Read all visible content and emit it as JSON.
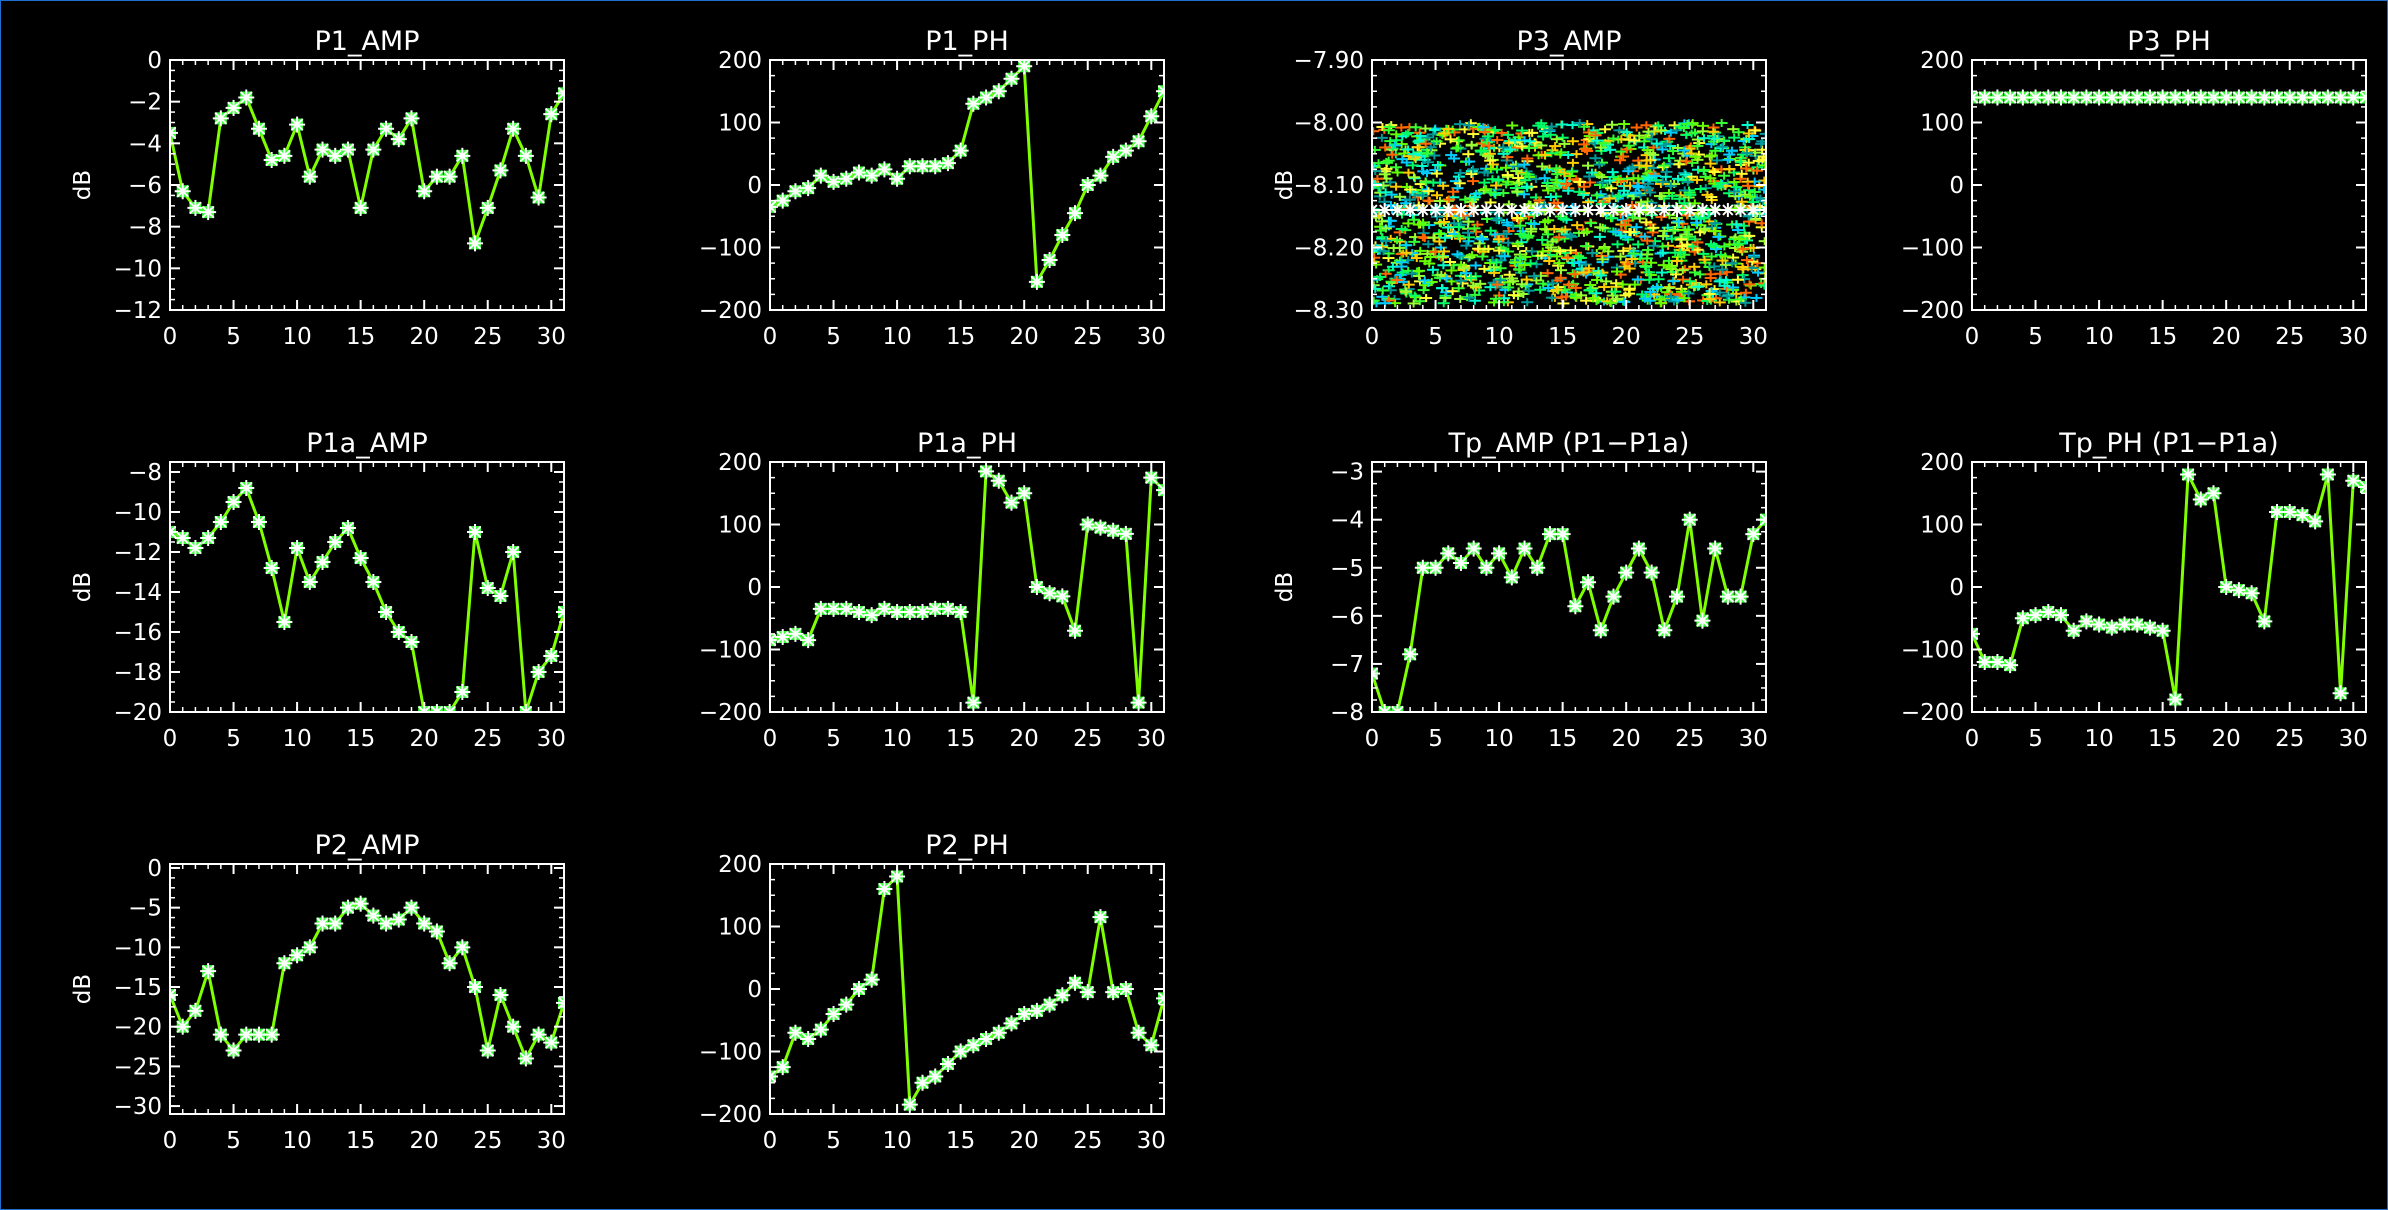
{
  "colors": {
    "background": "#000000",
    "axis": "#ffffff",
    "line": "#7fff00",
    "marker": "#ffffff",
    "frame": "#1e6fd0"
  },
  "chart_data": [
    {
      "id": "p1-amp",
      "type": "line",
      "title": "P1_AMP",
      "ylabel": "dB",
      "xlim": [
        0,
        31
      ],
      "xticks": [
        0,
        5,
        10,
        15,
        20,
        25,
        30
      ],
      "xtick_labels": [
        "0",
        "5",
        "10",
        "15",
        "20",
        "25",
        "30"
      ],
      "ylim": [
        -12,
        0
      ],
      "yticks": [
        0,
        -2,
        -4,
        -6,
        -8,
        -10,
        -12
      ],
      "ytick_labels": [
        "0",
        "−2",
        "−4",
        "−6",
        "−8",
        "−10",
        "−12"
      ],
      "x": [
        0,
        1,
        2,
        3,
        4,
        5,
        6,
        7,
        8,
        9,
        10,
        11,
        12,
        13,
        14,
        15,
        16,
        17,
        18,
        19,
        20,
        21,
        22,
        23,
        24,
        25,
        26,
        27,
        28,
        29,
        30,
        31
      ],
      "values": [
        -3.5,
        -6.3,
        -7.1,
        -7.3,
        -2.8,
        -2.3,
        -1.8,
        -3.3,
        -4.8,
        -4.6,
        -3.1,
        -5.6,
        -4.3,
        -4.6,
        -4.3,
        -7.1,
        -4.3,
        -3.3,
        -3.8,
        -2.8,
        -6.3,
        -5.6,
        -5.6,
        -4.6,
        -8.8,
        -7.1,
        -5.3,
        -3.3,
        -4.6,
        -6.6,
        -2.6,
        -1.6
      ],
      "scatter": false
    },
    {
      "id": "p1-ph",
      "type": "line",
      "title": "P1_PH",
      "ylabel": "",
      "xlim": [
        0,
        31
      ],
      "xticks": [
        0,
        5,
        10,
        15,
        20,
        25,
        30
      ],
      "xtick_labels": [
        "0",
        "5",
        "10",
        "15",
        "20",
        "25",
        "30"
      ],
      "ylim": [
        -200,
        200
      ],
      "yticks": [
        200,
        100,
        0,
        -100,
        -200
      ],
      "ytick_labels": [
        "200",
        "100",
        "0",
        "−100",
        "−200"
      ],
      "x": [
        0,
        1,
        2,
        3,
        4,
        5,
        6,
        7,
        8,
        9,
        10,
        11,
        12,
        13,
        14,
        15,
        16,
        17,
        18,
        19,
        20,
        21,
        22,
        23,
        24,
        25,
        26,
        27,
        28,
        29,
        30,
        31
      ],
      "values": [
        -35,
        -25,
        -10,
        -5,
        15,
        5,
        10,
        20,
        15,
        25,
        10,
        30,
        30,
        30,
        35,
        55,
        130,
        140,
        150,
        170,
        190,
        -155,
        -120,
        -80,
        -45,
        0,
        15,
        45,
        55,
        70,
        110,
        150
      ],
      "scatter": false
    },
    {
      "id": "p3-amp",
      "type": "scatter",
      "title": "P3_AMP",
      "ylabel": "dB",
      "xlim": [
        0,
        31
      ],
      "xticks": [
        0,
        5,
        10,
        15,
        20,
        25,
        30
      ],
      "xtick_labels": [
        "0",
        "5",
        "10",
        "15",
        "20",
        "25",
        "30"
      ],
      "ylim": [
        -8.3,
        -7.9
      ],
      "yticks": [
        -7.9,
        -8.0,
        -8.1,
        -8.2,
        -8.3
      ],
      "ytick_labels": [
        "−7.90",
        "−8.00",
        "−8.10",
        "−8.20",
        "−8.30"
      ],
      "band": [
        -8.29,
        -8.0
      ],
      "x": [],
      "values": [],
      "center_series": [
        -8.14,
        -8.14,
        -8.14,
        -8.14,
        -8.14,
        -8.14,
        -8.14,
        -8.14,
        -8.14,
        -8.14,
        -8.14,
        -8.14,
        -8.14,
        -8.14,
        -8.14,
        -8.14,
        -8.14,
        -8.14,
        -8.14,
        -8.14,
        -8.14,
        -8.14,
        -8.14,
        -8.14,
        -8.14,
        -8.14,
        -8.14,
        -8.14,
        -8.14,
        -8.14,
        -8.14,
        -8.14
      ],
      "scatter": true
    },
    {
      "id": "p3-ph",
      "type": "line",
      "title": "P3_PH",
      "ylabel": "",
      "xlim": [
        0,
        31
      ],
      "xticks": [
        0,
        5,
        10,
        15,
        20,
        25,
        30
      ],
      "xtick_labels": [
        "0",
        "5",
        "10",
        "15",
        "20",
        "25",
        "30"
      ],
      "ylim": [
        -200,
        200
      ],
      "yticks": [
        200,
        100,
        0,
        -100,
        -200
      ],
      "ytick_labels": [
        "200",
        "100",
        "0",
        "−100",
        "−200"
      ],
      "x": [
        0,
        1,
        2,
        3,
        4,
        5,
        6,
        7,
        8,
        9,
        10,
        11,
        12,
        13,
        14,
        15,
        16,
        17,
        18,
        19,
        20,
        21,
        22,
        23,
        24,
        25,
        26,
        27,
        28,
        29,
        30,
        31
      ],
      "values": [
        140,
        140,
        140,
        140,
        140,
        140,
        140,
        140,
        140,
        140,
        140,
        140,
        140,
        140,
        140,
        140,
        140,
        140,
        140,
        140,
        140,
        140,
        140,
        140,
        140,
        140,
        140,
        140,
        140,
        140,
        140,
        140
      ],
      "scatter": false
    },
    {
      "id": "p1a-amp",
      "type": "line",
      "title": "P1a_AMP",
      "ylabel": "dB",
      "xlim": [
        0,
        31
      ],
      "xticks": [
        0,
        5,
        10,
        15,
        20,
        25,
        30
      ],
      "xtick_labels": [
        "0",
        "5",
        "10",
        "15",
        "20",
        "25",
        "30"
      ],
      "ylim": [
        -20,
        -7.5
      ],
      "yticks": [
        -8,
        -10,
        -12,
        -14,
        -16,
        -18,
        -20
      ],
      "ytick_labels": [
        "−8",
        "−10",
        "−12",
        "−14",
        "−16",
        "−18",
        "−20"
      ],
      "x": [
        0,
        1,
        2,
        3,
        4,
        5,
        6,
        7,
        8,
        9,
        10,
        11,
        12,
        13,
        14,
        15,
        16,
        17,
        18,
        19,
        20,
        21,
        22,
        23,
        24,
        25,
        26,
        27,
        28,
        29,
        30,
        31
      ],
      "values": [
        -11,
        -11.3,
        -11.8,
        -11.3,
        -10.5,
        -9.5,
        -8.8,
        -10.5,
        -12.8,
        -15.5,
        -11.8,
        -13.5,
        -12.5,
        -11.5,
        -10.8,
        -12.3,
        -13.5,
        -15,
        -16,
        -16.5,
        -20,
        -20,
        -20,
        -19,
        -11,
        -13.8,
        -14.2,
        -12,
        -20,
        -18,
        -17.2,
        -15
      ],
      "scatter": false
    },
    {
      "id": "p1a-ph",
      "type": "line",
      "title": "P1a_PH",
      "ylabel": "",
      "xlim": [
        0,
        31
      ],
      "xticks": [
        0,
        5,
        10,
        15,
        20,
        25,
        30
      ],
      "xtick_labels": [
        "0",
        "5",
        "10",
        "15",
        "20",
        "25",
        "30"
      ],
      "ylim": [
        -200,
        200
      ],
      "yticks": [
        200,
        100,
        0,
        -100,
        -200
      ],
      "ytick_labels": [
        "200",
        "100",
        "0",
        "−100",
        "−200"
      ],
      "x": [
        0,
        1,
        2,
        3,
        4,
        5,
        6,
        7,
        8,
        9,
        10,
        11,
        12,
        13,
        14,
        15,
        16,
        17,
        18,
        19,
        20,
        21,
        22,
        23,
        24,
        25,
        26,
        27,
        28,
        29,
        30,
        31
      ],
      "values": [
        -85,
        -80,
        -75,
        -85,
        -35,
        -35,
        -35,
        -40,
        -45,
        -35,
        -40,
        -40,
        -40,
        -35,
        -35,
        -40,
        -185,
        185,
        170,
        135,
        150,
        0,
        -10,
        -15,
        -70,
        100,
        95,
        90,
        85,
        -185,
        175,
        155
      ],
      "scatter": false
    },
    {
      "id": "tp-amp",
      "type": "line",
      "title": "Tp_AMP (P1−P1a)",
      "ylabel": "dB",
      "xlim": [
        0,
        31
      ],
      "xticks": [
        0,
        5,
        10,
        15,
        20,
        25,
        30
      ],
      "xtick_labels": [
        "0",
        "5",
        "10",
        "15",
        "20",
        "25",
        "30"
      ],
      "ylim": [
        -8,
        -2.8
      ],
      "yticks": [
        -3,
        -4,
        -5,
        -6,
        -7,
        -8
      ],
      "ytick_labels": [
        "−3",
        "−4",
        "−5",
        "−6",
        "−7",
        "−8"
      ],
      "x": [
        0,
        1,
        2,
        3,
        4,
        5,
        6,
        7,
        8,
        9,
        10,
        11,
        12,
        13,
        14,
        15,
        16,
        17,
        18,
        19,
        20,
        21,
        22,
        23,
        24,
        25,
        26,
        27,
        28,
        29,
        30,
        31
      ],
      "values": [
        -7.2,
        -8,
        -8,
        -6.8,
        -5,
        -5,
        -4.7,
        -4.9,
        -4.6,
        -5,
        -4.7,
        -5.2,
        -4.6,
        -5,
        -4.3,
        -4.3,
        -5.8,
        -5.3,
        -6.3,
        -5.6,
        -5.1,
        -4.6,
        -5.1,
        -6.3,
        -5.6,
        -4,
        -6.1,
        -4.6,
        -5.6,
        -5.6,
        -4.3,
        -4
      ],
      "scatter": false
    },
    {
      "id": "tp-ph",
      "type": "line",
      "title": "Tp_PH (P1−P1a)",
      "ylabel": "",
      "xlim": [
        0,
        31
      ],
      "xticks": [
        0,
        5,
        10,
        15,
        20,
        25,
        30
      ],
      "xtick_labels": [
        "0",
        "5",
        "10",
        "15",
        "20",
        "25",
        "30"
      ],
      "ylim": [
        -200,
        200
      ],
      "yticks": [
        200,
        100,
        0,
        -100,
        -200
      ],
      "ytick_labels": [
        "200",
        "100",
        "0",
        "−100",
        "−200"
      ],
      "x": [
        0,
        1,
        2,
        3,
        4,
        5,
        6,
        7,
        8,
        9,
        10,
        11,
        12,
        13,
        14,
        15,
        16,
        17,
        18,
        19,
        20,
        21,
        22,
        23,
        24,
        25,
        26,
        27,
        28,
        29,
        30,
        31
      ],
      "values": [
        -75,
        -120,
        -120,
        -125,
        -50,
        -45,
        -40,
        -45,
        -70,
        -55,
        -60,
        -65,
        -60,
        -60,
        -65,
        -70,
        -180,
        180,
        140,
        150,
        0,
        -5,
        -10,
        -55,
        120,
        120,
        115,
        105,
        180,
        -170,
        170,
        160
      ],
      "scatter": false
    },
    {
      "id": "p2-amp",
      "type": "line",
      "title": "P2_AMP",
      "ylabel": "dB",
      "xlim": [
        0,
        31
      ],
      "xticks": [
        0,
        5,
        10,
        15,
        20,
        25,
        30
      ],
      "xtick_labels": [
        "0",
        "5",
        "10",
        "15",
        "20",
        "25",
        "30"
      ],
      "ylim": [
        -31,
        0.5
      ],
      "yticks": [
        0,
        -5,
        -10,
        -15,
        -20,
        -25,
        -30
      ],
      "ytick_labels": [
        "0",
        "−5",
        "−10",
        "−15",
        "−20",
        "−25",
        "−30"
      ],
      "x": [
        0,
        1,
        2,
        3,
        4,
        5,
        6,
        7,
        8,
        9,
        10,
        11,
        12,
        13,
        14,
        15,
        16,
        17,
        18,
        19,
        20,
        21,
        22,
        23,
        24,
        25,
        26,
        27,
        28,
        29,
        30,
        31
      ],
      "values": [
        -16,
        -20,
        -18,
        -13,
        -21,
        -23,
        -21,
        -21,
        -21,
        -12,
        -11,
        -10,
        -7,
        -7,
        -5,
        -4.5,
        -6,
        -7,
        -6.5,
        -5,
        -7,
        -8,
        -12,
        -10,
        -15,
        -23,
        -16,
        -20,
        -24,
        -21,
        -22,
        -17
      ],
      "scatter": false
    },
    {
      "id": "p2-ph",
      "type": "line",
      "title": "P2_PH",
      "ylabel": "",
      "xlim": [
        0,
        31
      ],
      "xticks": [
        0,
        5,
        10,
        15,
        20,
        25,
        30
      ],
      "xtick_labels": [
        "0",
        "5",
        "10",
        "15",
        "20",
        "25",
        "30"
      ],
      "ylim": [
        -200,
        200
      ],
      "yticks": [
        200,
        100,
        0,
        -100,
        -200
      ],
      "ytick_labels": [
        "200",
        "100",
        "0",
        "−100",
        "−200"
      ],
      "x": [
        0,
        1,
        2,
        3,
        4,
        5,
        6,
        7,
        8,
        9,
        10,
        11,
        12,
        13,
        14,
        15,
        16,
        17,
        18,
        19,
        20,
        21,
        22,
        23,
        24,
        25,
        26,
        27,
        28,
        29,
        30,
        31
      ],
      "values": [
        -140,
        -125,
        -70,
        -80,
        -65,
        -40,
        -25,
        0,
        15,
        160,
        180,
        -185,
        -150,
        -140,
        -120,
        -100,
        -90,
        -80,
        -70,
        -55,
        -40,
        -35,
        -25,
        -10,
        10,
        -5,
        115,
        -5,
        0,
        -70,
        -90,
        -15
      ],
      "scatter": false
    }
  ]
}
